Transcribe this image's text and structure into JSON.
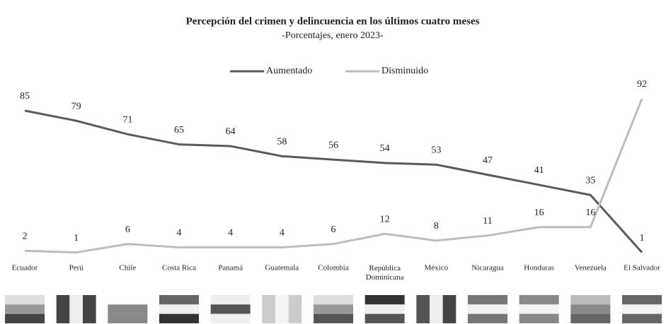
{
  "chart_data": {
    "type": "line",
    "title": "Percepción del crimen y delincuencia en los últimos cuatro meses",
    "subtitle": "-Porcentajes, enero 2023-",
    "categories": [
      "Ecuador",
      "Perú",
      "Chile",
      "Costa Rica",
      "Panamá",
      "Guatemala",
      "Colombia",
      "República Dominicana",
      "México",
      "Nicaragua",
      "Honduras",
      "Venezuela",
      "El Salvador"
    ],
    "series": [
      {
        "name": "Aumentado",
        "color": "#5a5a5a",
        "values": [
          85,
          79,
          71,
          65,
          64,
          58,
          56,
          54,
          53,
          47,
          41,
          35,
          1
        ]
      },
      {
        "name": "Disminuido",
        "color": "#bdbdbd",
        "values": [
          2,
          1,
          6,
          4,
          4,
          4,
          6,
          12,
          8,
          11,
          16,
          16,
          92
        ]
      }
    ],
    "legend": "top"
  }
}
